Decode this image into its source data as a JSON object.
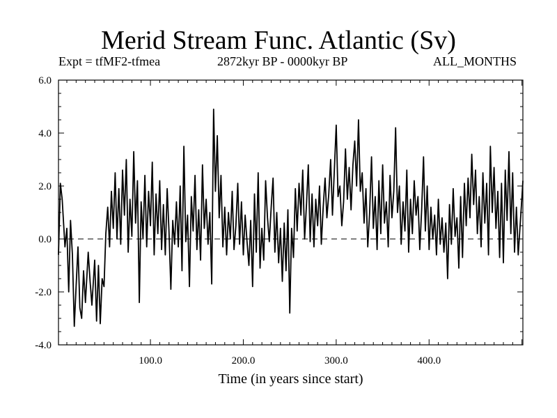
{
  "chart_data": {
    "type": "line",
    "title": "Merid Stream Func. Atlantic (Sv)",
    "subtitle_left": "Expt = tfMF2-tfmea",
    "subtitle_center": "2872kyr BP - 0000kyr BP",
    "subtitle_right": "ALL_MONTHS",
    "xlabel": "Time (in years since start)",
    "ylabel": "",
    "xlim": [
      1,
      501
    ],
    "ylim": [
      -4.0,
      6.0
    ],
    "xticks": [
      100,
      200,
      300,
      400
    ],
    "xtick_labels": [
      "100.0",
      "200.0",
      "300.0",
      "400.0"
    ],
    "yticks": [
      -4,
      -2,
      0,
      2,
      4,
      6
    ],
    "ytick_labels": [
      "-4.0",
      "-2.0",
      "0.0",
      "2.0",
      "4.0",
      "6.0"
    ],
    "reference_line": 0.0,
    "series": [
      {
        "name": "Merid Stream Func. Atlantic",
        "anchors": [
          [
            1,
            -0.6
          ],
          [
            3,
            2.1
          ],
          [
            5,
            1.5
          ],
          [
            8,
            -0.3
          ],
          [
            10,
            0.4
          ],
          [
            12,
            -2.0
          ],
          [
            14,
            0.7
          ],
          [
            16,
            -0.6
          ],
          [
            18,
            -3.3
          ],
          [
            20,
            -1.8
          ],
          [
            22,
            -0.3
          ],
          [
            24,
            -2.6
          ],
          [
            26,
            -3.0
          ],
          [
            28,
            -1.2
          ],
          [
            30,
            -2.4
          ],
          [
            33,
            -0.5
          ],
          [
            35,
            -1.6
          ],
          [
            37,
            -2.5
          ],
          [
            40,
            -0.8
          ],
          [
            42,
            -3.1
          ],
          [
            44,
            -1.0
          ],
          [
            46,
            -3.2
          ],
          [
            48,
            -1.5
          ],
          [
            50,
            -1.8
          ],
          [
            52,
            0.2
          ],
          [
            54,
            1.2
          ],
          [
            56,
            -0.3
          ],
          [
            58,
            1.8
          ],
          [
            60,
            0.4
          ],
          [
            62,
            2.5
          ],
          [
            64,
            0.0
          ],
          [
            66,
            1.9
          ],
          [
            68,
            -0.2
          ],
          [
            70,
            2.6
          ],
          [
            72,
            0.9
          ],
          [
            74,
            3.0
          ],
          [
            76,
            -0.5
          ],
          [
            78,
            1.5
          ],
          [
            80,
            0.1
          ],
          [
            82,
            3.3
          ],
          [
            84,
            0.6
          ],
          [
            86,
            2.2
          ],
          [
            88,
            -2.4
          ],
          [
            90,
            1.4
          ],
          [
            92,
            0.0
          ],
          [
            94,
            2.4
          ],
          [
            96,
            -0.3
          ],
          [
            98,
            1.8
          ],
          [
            100,
            0.5
          ],
          [
            102,
            2.9
          ],
          [
            104,
            -0.6
          ],
          [
            106,
            1.7
          ],
          [
            108,
            0.2
          ],
          [
            110,
            2.2
          ],
          [
            112,
            -0.4
          ],
          [
            114,
            1.3
          ],
          [
            116,
            -0.6
          ],
          [
            118,
            1.9
          ],
          [
            120,
            0.3
          ],
          [
            122,
            -1.9
          ],
          [
            124,
            0.7
          ],
          [
            126,
            -0.2
          ],
          [
            128,
            1.4
          ],
          [
            130,
            -0.3
          ],
          [
            132,
            2.0
          ],
          [
            134,
            -1.2
          ],
          [
            136,
            3.5
          ],
          [
            138,
            -0.1
          ],
          [
            140,
            0.9
          ],
          [
            142,
            -1.8
          ],
          [
            144,
            1.6
          ],
          [
            146,
            0.3
          ],
          [
            148,
            2.4
          ],
          [
            150,
            -0.4
          ],
          [
            152,
            1.1
          ],
          [
            154,
            -0.8
          ],
          [
            156,
            2.8
          ],
          [
            158,
            0.4
          ],
          [
            160,
            1.5
          ],
          [
            162,
            -0.2
          ],
          [
            164,
            1.0
          ],
          [
            166,
            -1.7
          ],
          [
            168,
            4.9
          ],
          [
            170,
            1.8
          ],
          [
            172,
            3.9
          ],
          [
            174,
            0.8
          ],
          [
            176,
            2.4
          ],
          [
            178,
            -0.3
          ],
          [
            180,
            1.2
          ],
          [
            182,
            -0.6
          ],
          [
            184,
            1.0
          ],
          [
            186,
            0.0
          ],
          [
            188,
            1.8
          ],
          [
            190,
            -0.4
          ],
          [
            192,
            0.5
          ],
          [
            194,
            2.1
          ],
          [
            196,
            -0.2
          ],
          [
            198,
            1.4
          ],
          [
            200,
            -0.6
          ],
          [
            202,
            0.9
          ],
          [
            204,
            -0.1
          ],
          [
            206,
            -1.0
          ],
          [
            208,
            0.7
          ],
          [
            210,
            -1.8
          ],
          [
            212,
            1.7
          ],
          [
            214,
            -0.5
          ],
          [
            216,
            2.5
          ],
          [
            218,
            -1.1
          ],
          [
            220,
            0.4
          ],
          [
            222,
            -0.8
          ],
          [
            224,
            2.2
          ],
          [
            226,
            0.8
          ],
          [
            228,
            -0.1
          ],
          [
            230,
            1.2
          ],
          [
            232,
            2.3
          ],
          [
            234,
            -0.5
          ],
          [
            236,
            1.0
          ],
          [
            238,
            -0.9
          ],
          [
            240,
            0.4
          ],
          [
            242,
            -1.6
          ],
          [
            244,
            0.6
          ],
          [
            246,
            -1.2
          ],
          [
            248,
            1.1
          ],
          [
            250,
            -2.8
          ],
          [
            252,
            0.4
          ],
          [
            254,
            -0.7
          ],
          [
            256,
            1.9
          ],
          [
            258,
            0.3
          ],
          [
            260,
            2.1
          ],
          [
            262,
            0.9
          ],
          [
            264,
            2.6
          ],
          [
            266,
            0.0
          ],
          [
            268,
            1.3
          ],
          [
            270,
            2.8
          ],
          [
            272,
            -0.1
          ],
          [
            274,
            1.7
          ],
          [
            276,
            -0.3
          ],
          [
            278,
            1.5
          ],
          [
            280,
            0.5
          ],
          [
            282,
            2.0
          ],
          [
            284,
            -0.2
          ],
          [
            286,
            1.2
          ],
          [
            288,
            2.3
          ],
          [
            290,
            0.8
          ],
          [
            292,
            1.7
          ],
          [
            294,
            3.0
          ],
          [
            296,
            0.9
          ],
          [
            298,
            2.6
          ],
          [
            300,
            4.3
          ],
          [
            302,
            1.6
          ],
          [
            304,
            2.0
          ],
          [
            306,
            0.5
          ],
          [
            308,
            1.4
          ],
          [
            310,
            3.4
          ],
          [
            312,
            1.5
          ],
          [
            314,
            2.7
          ],
          [
            316,
            1.1
          ],
          [
            318,
            2.8
          ],
          [
            320,
            3.7
          ],
          [
            322,
            2.0
          ],
          [
            324,
            4.5
          ],
          [
            326,
            1.8
          ],
          [
            328,
            2.5
          ],
          [
            330,
            0.6
          ],
          [
            332,
            1.9
          ],
          [
            334,
            -0.3
          ],
          [
            336,
            1.0
          ],
          [
            338,
            3.1
          ],
          [
            340,
            0.4
          ],
          [
            342,
            1.6
          ],
          [
            344,
            -0.4
          ],
          [
            346,
            2.2
          ],
          [
            348,
            0.2
          ],
          [
            350,
            2.8
          ],
          [
            352,
            0.6
          ],
          [
            354,
            1.4
          ],
          [
            356,
            -0.3
          ],
          [
            358,
            2.4
          ],
          [
            360,
            0.8
          ],
          [
            362,
            1.8
          ],
          [
            364,
            4.2
          ],
          [
            366,
            1.0
          ],
          [
            368,
            2.0
          ],
          [
            370,
            -0.2
          ],
          [
            372,
            1.4
          ],
          [
            374,
            0.3
          ],
          [
            376,
            2.6
          ],
          [
            378,
            -0.5
          ],
          [
            380,
            1.5
          ],
          [
            382,
            0.2
          ],
          [
            384,
            2.2
          ],
          [
            386,
            0.9
          ],
          [
            388,
            1.6
          ],
          [
            390,
            -0.4
          ],
          [
            392,
            1.1
          ],
          [
            394,
            3.1
          ],
          [
            396,
            0.3
          ],
          [
            398,
            2.0
          ],
          [
            400,
            -0.4
          ],
          [
            402,
            1.2
          ],
          [
            404,
            0.0
          ],
          [
            406,
            0.9
          ],
          [
            408,
            -0.6
          ],
          [
            410,
            1.5
          ],
          [
            412,
            -0.2
          ],
          [
            414,
            0.8
          ],
          [
            416,
            -0.5
          ],
          [
            418,
            0.6
          ],
          [
            420,
            -1.5
          ],
          [
            422,
            1.3
          ],
          [
            424,
            -0.2
          ],
          [
            426,
            1.9
          ],
          [
            428,
            0.1
          ],
          [
            430,
            0.8
          ],
          [
            432,
            -1.1
          ],
          [
            434,
            1.6
          ],
          [
            436,
            -0.7
          ],
          [
            438,
            2.1
          ],
          [
            440,
            0.5
          ],
          [
            442,
            2.3
          ],
          [
            444,
            0.8
          ],
          [
            446,
            3.2
          ],
          [
            448,
            1.3
          ],
          [
            450,
            2.6
          ],
          [
            452,
            0.2
          ],
          [
            454,
            1.6
          ],
          [
            456,
            -0.3
          ],
          [
            458,
            2.5
          ],
          [
            460,
            0.6
          ],
          [
            462,
            2.1
          ],
          [
            464,
            -0.6
          ],
          [
            466,
            3.5
          ],
          [
            468,
            1.0
          ],
          [
            470,
            2.7
          ],
          [
            472,
            0.4
          ],
          [
            474,
            1.8
          ],
          [
            476,
            -0.7
          ],
          [
            478,
            2.1
          ],
          [
            480,
            -0.9
          ],
          [
            482,
            2.6
          ],
          [
            484,
            0.7
          ],
          [
            486,
            3.3
          ],
          [
            488,
            0.2
          ],
          [
            490,
            2.5
          ],
          [
            492,
            -0.5
          ],
          [
            494,
            1.2
          ],
          [
            496,
            -0.6
          ],
          [
            498,
            0.5
          ],
          [
            500,
            1.6
          ],
          [
            501,
            2.2
          ]
        ]
      }
    ]
  }
}
